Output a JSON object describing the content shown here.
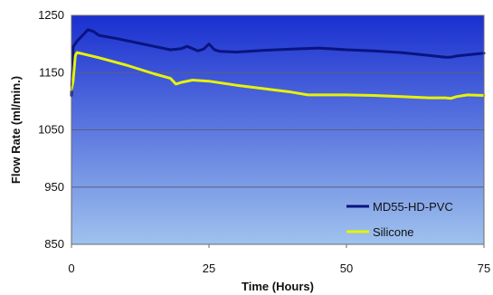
{
  "chart_data": {
    "type": "line",
    "title": "",
    "xlabel": "Time (Hours)",
    "ylabel": "Flow Rate (ml/min.)",
    "xlim": [
      0,
      75
    ],
    "ylim": [
      850,
      1250
    ],
    "xticks": [
      0,
      25,
      50,
      75
    ],
    "yticks": [
      850,
      950,
      1050,
      1150,
      1250
    ],
    "grid": true,
    "legend_position": "bottom-right",
    "background_gradient": [
      "#1a2fd0",
      "#9fc2ee"
    ],
    "series": [
      {
        "name": "MD55-HD-PVC",
        "color": "#0a1480",
        "x": [
          0,
          0.3,
          1,
          2,
          3,
          4,
          5,
          8,
          12,
          15,
          18,
          20,
          21,
          22,
          23,
          24,
          25,
          26,
          27,
          30,
          35,
          40,
          45,
          50,
          55,
          60,
          65,
          68,
          69,
          70,
          72,
          75
        ],
        "y": [
          1110,
          1195,
          1205,
          1215,
          1225,
          1222,
          1215,
          1210,
          1202,
          1196,
          1190,
          1192,
          1196,
          1192,
          1188,
          1191,
          1200,
          1190,
          1187,
          1186,
          1189,
          1191,
          1193,
          1190,
          1188,
          1185,
          1180,
          1177,
          1177,
          1179,
          1181,
          1184
        ]
      },
      {
        "name": "Silicone",
        "color": "#e6f20a",
        "x": [
          0,
          0.3,
          0.7,
          1,
          2,
          5,
          10,
          15,
          18,
          19,
          20,
          22,
          25,
          30,
          35,
          40,
          43,
          45,
          50,
          55,
          60,
          65,
          68,
          69,
          70,
          72,
          75
        ],
        "y": [
          1120,
          1135,
          1180,
          1185,
          1183,
          1176,
          1163,
          1148,
          1140,
          1130,
          1133,
          1137,
          1135,
          1128,
          1122,
          1116,
          1111,
          1111,
          1111,
          1110,
          1108,
          1106,
          1106,
          1105,
          1108,
          1111,
          1110
        ]
      }
    ]
  }
}
